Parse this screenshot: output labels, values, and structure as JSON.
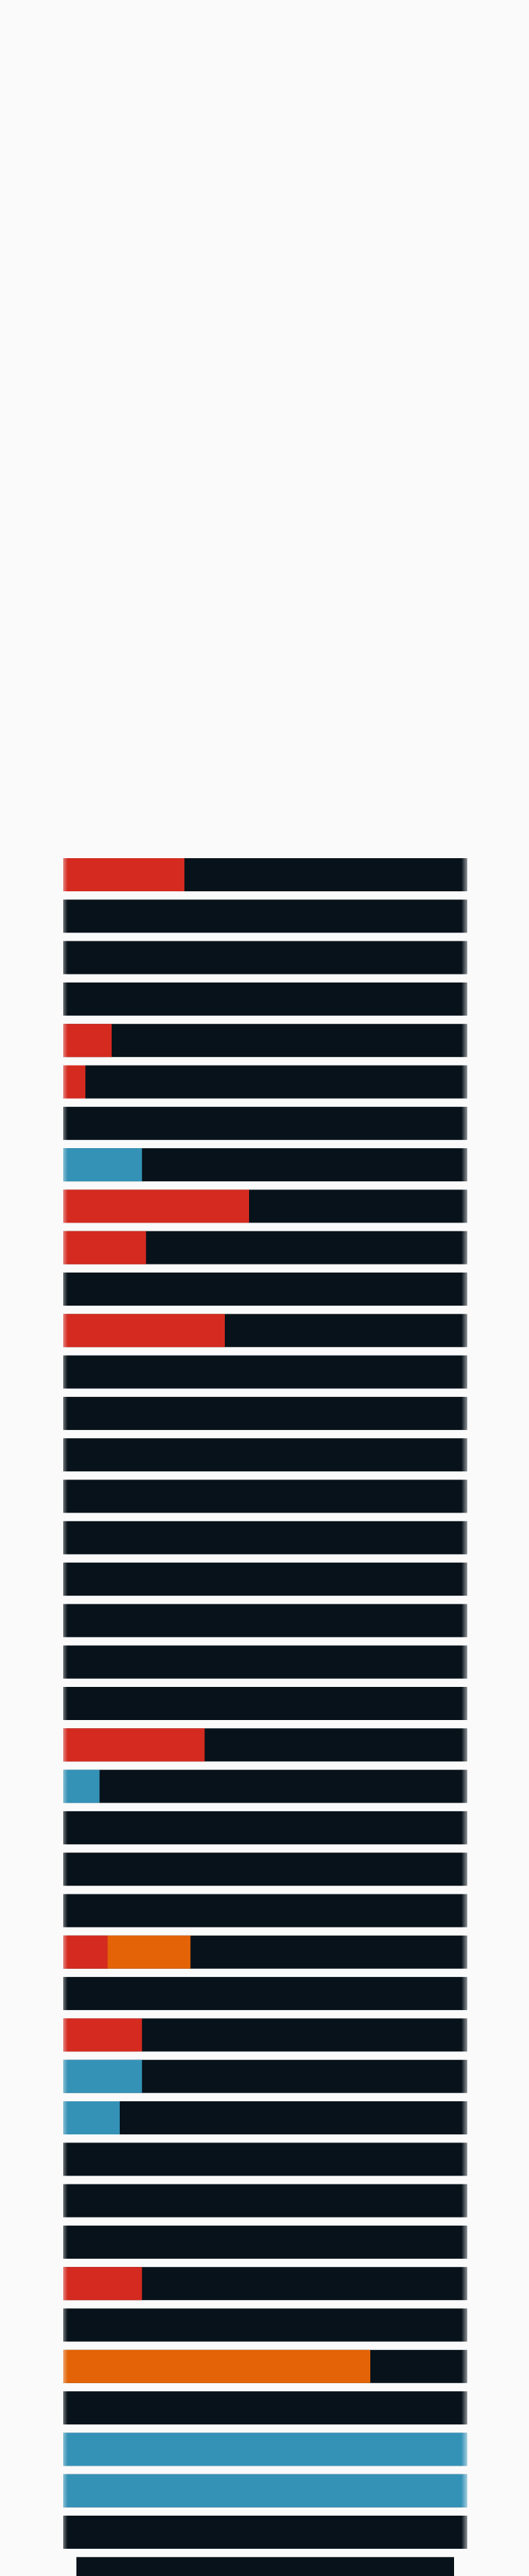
{
  "chart_data": {
    "type": "bar",
    "orientation": "horizontal",
    "stacked": true,
    "xlim": [
      0,
      100
    ],
    "colors": {
      "red": "#d42a20",
      "orange": "#e36306",
      "blue": "#3592b7",
      "remainder": "#07121a"
    },
    "rows": [
      {
        "segments": [
          {
            "color": "red",
            "value": 30
          }
        ]
      },
      {
        "segments": []
      },
      {
        "segments": []
      },
      {
        "segments": []
      },
      {
        "segments": [
          {
            "color": "red",
            "value": 12
          }
        ]
      },
      {
        "segments": [
          {
            "color": "red",
            "value": 5.5
          }
        ]
      },
      {
        "segments": []
      },
      {
        "segments": [
          {
            "color": "blue",
            "value": 19.5
          }
        ]
      },
      {
        "segments": [
          {
            "color": "red",
            "value": 46
          }
        ]
      },
      {
        "segments": [
          {
            "color": "red",
            "value": 20.5
          }
        ]
      },
      {
        "segments": []
      },
      {
        "segments": [
          {
            "color": "red",
            "value": 40
          }
        ]
      },
      {
        "segments": []
      },
      {
        "segments": []
      },
      {
        "segments": []
      },
      {
        "segments": []
      },
      {
        "segments": []
      },
      {
        "segments": []
      },
      {
        "segments": []
      },
      {
        "segments": []
      },
      {
        "segments": []
      },
      {
        "segments": [
          {
            "color": "red",
            "value": 35
          }
        ]
      },
      {
        "segments": [
          {
            "color": "blue",
            "value": 9
          }
        ]
      },
      {
        "segments": []
      },
      {
        "segments": []
      },
      {
        "segments": []
      },
      {
        "segments": [
          {
            "color": "red",
            "value": 11
          },
          {
            "color": "orange",
            "value": 20.5
          }
        ]
      },
      {
        "segments": []
      },
      {
        "segments": [
          {
            "color": "red",
            "value": 19.5
          }
        ]
      },
      {
        "segments": [
          {
            "color": "blue",
            "value": 19.5
          }
        ]
      },
      {
        "segments": [
          {
            "color": "blue",
            "value": 14
          }
        ]
      },
      {
        "segments": []
      },
      {
        "segments": []
      },
      {
        "segments": []
      },
      {
        "segments": [
          {
            "color": "red",
            "value": 19.5
          }
        ]
      },
      {
        "segments": []
      },
      {
        "segments": [
          {
            "color": "orange",
            "value": 76
          }
        ]
      },
      {
        "segments": []
      },
      {
        "segments": [
          {
            "color": "blue",
            "value": 100
          }
        ]
      },
      {
        "segments": [
          {
            "color": "blue",
            "value": 100
          }
        ]
      },
      {
        "segments": []
      },
      {
        "segments": []
      }
    ]
  }
}
